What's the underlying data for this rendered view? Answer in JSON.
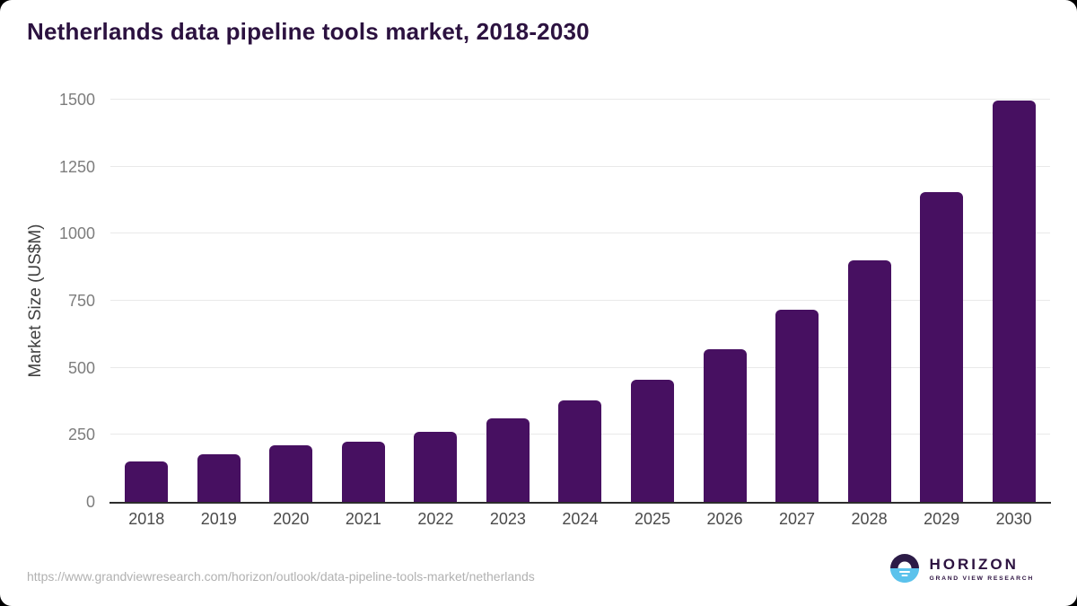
{
  "title": "Netherlands data pipeline tools market, 2018-2030",
  "source_url": "https://www.grandviewresearch.com/horizon/outlook/data-pipeline-tools-market/netherlands",
  "logo": {
    "name": "HORIZON",
    "subtitle": "GRAND VIEW RESEARCH"
  },
  "colors": {
    "bar": "#471061",
    "title_text": "#2c1240",
    "gridline": "#e9e9e9",
    "axis_line": "#2d2d2d",
    "y_tick_text": "#7d7d7d",
    "x_tick_text": "#4a4a4a",
    "url_text": "#b1b1b1",
    "logo_purple": "#2c1b47",
    "logo_blue": "#5bc2ec"
  },
  "chart_data": {
    "type": "bar",
    "title": "Netherlands data pipeline tools market, 2018-2030",
    "xlabel": "",
    "ylabel": "Market Size (US$M)",
    "categories": [
      "2018",
      "2019",
      "2020",
      "2021",
      "2022",
      "2023",
      "2024",
      "2025",
      "2026",
      "2027",
      "2028",
      "2029",
      "2030"
    ],
    "values": [
      150,
      176,
      210,
      224,
      261,
      313,
      379,
      457,
      568,
      715,
      901,
      1154,
      1497
    ],
    "ylim": [
      0,
      1500
    ],
    "yticks": [
      0,
      250,
      500,
      750,
      1000,
      1250,
      1500
    ],
    "grid": "horizontal",
    "legend": "none",
    "bar_color": "#471061"
  }
}
